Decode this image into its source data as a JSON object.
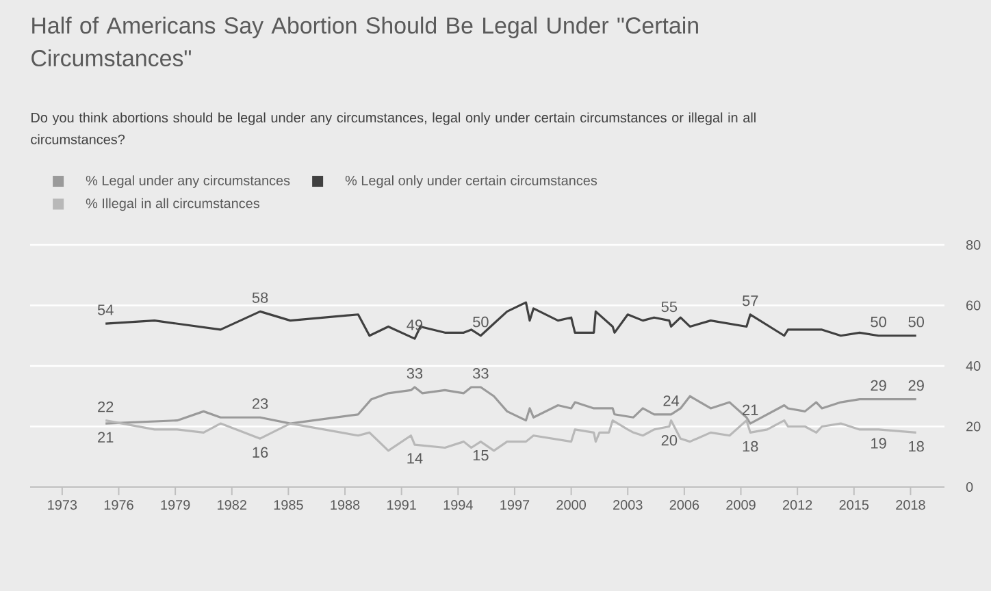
{
  "chart_data": {
    "type": "line",
    "title": "Half of Americans Say Abortion Should Be Legal Under \"Certain Circumstances\"",
    "subtitle": "Do you think abortions should be legal under any circumstances, legal only under certain circumstances or illegal in all circumstances?",
    "series": [
      {
        "name": "% Legal under any circumstances",
        "color": "#9a9a9a",
        "x": [
          1975.3,
          1979.1,
          1980.5,
          1981.4,
          1983.5,
          1985.1,
          1988.7,
          1989.4,
          1990.3,
          1991.5,
          1991.7,
          1992.1,
          1993.3,
          1994.3,
          1994.7,
          1995.2,
          1995.9,
          1996.6,
          1997.6,
          1997.8,
          1998.0,
          1999.3,
          2000.0,
          2000.2,
          2001.2,
          2002.2,
          2002.3,
          2003.3,
          2003.8,
          2004.4,
          2005.3,
          2005.8,
          2006.3,
          2007.4,
          2008.4,
          2009.3,
          2009.5,
          2011.3,
          2011.5,
          2012.4,
          2013.0,
          2013.3,
          2014.3,
          2015.3,
          2016.3,
          2018.3
        ],
        "values": [
          21,
          22,
          25,
          23,
          23,
          21,
          24,
          29,
          31,
          32,
          33,
          31,
          32,
          31,
          33,
          33,
          30,
          25,
          22,
          26,
          23,
          27,
          26,
          28,
          26,
          26,
          24,
          23,
          26,
          24,
          24,
          26,
          30,
          26,
          28,
          23,
          21,
          27,
          26,
          25,
          28,
          26,
          28,
          29,
          29,
          29
        ]
      },
      {
        "name": "% Legal only under certain circumstances",
        "color": "#404040",
        "x": [
          1975.3,
          1977.9,
          1981.4,
          1983.5,
          1985.1,
          1988.7,
          1989.3,
          1990.3,
          1991.7,
          1992.0,
          1993.3,
          1994.3,
          1994.7,
          1995.2,
          1995.9,
          1996.6,
          1997.6,
          1997.8,
          1998.0,
          1999.3,
          2000.0,
          2000.2,
          2001.2,
          2001.3,
          2002.2,
          2002.3,
          2003.0,
          2003.8,
          2004.4,
          2005.2,
          2005.3,
          2005.8,
          2006.3,
          2007.4,
          2009.3,
          2009.5,
          2011.3,
          2011.5,
          2012.4,
          2013.3,
          2014.3,
          2015.3,
          2016.3,
          2018.3
        ],
        "values": [
          54,
          55,
          52,
          58,
          55,
          57,
          50,
          53,
          49,
          53,
          51,
          51,
          52,
          50,
          54,
          58,
          61,
          55,
          59,
          55,
          56,
          51,
          51,
          58,
          53,
          51,
          57,
          55,
          56,
          55,
          53,
          56,
          53,
          55,
          53,
          57,
          50,
          52,
          52,
          52,
          50,
          51,
          50,
          50
        ]
      },
      {
        "name": "% Illegal in all circumstances",
        "color": "#b8b8b8",
        "x": [
          1975.3,
          1977.9,
          1979.1,
          1980.5,
          1981.4,
          1983.5,
          1985.1,
          1988.7,
          1989.3,
          1990.3,
          1991.5,
          1991.7,
          1993.3,
          1994.3,
          1994.7,
          1995.2,
          1995.9,
          1996.6,
          1997.6,
          1998.0,
          2000.0,
          2000.2,
          2001.2,
          2001.3,
          2001.5,
          2002.0,
          2002.2,
          2003.0,
          2003.3,
          2003.8,
          2004.4,
          2005.2,
          2005.3,
          2005.8,
          2006.3,
          2007.4,
          2008.4,
          2009.3,
          2009.5,
          2010.4,
          2011.3,
          2011.5,
          2012.4,
          2013.0,
          2013.3,
          2014.3,
          2015.3,
          2016.3,
          2018.3
        ],
        "values": [
          22,
          19,
          19,
          18,
          21,
          16,
          21,
          17,
          18,
          12,
          17,
          14,
          13,
          15,
          13,
          15,
          12,
          15,
          15,
          17,
          15,
          19,
          18,
          15,
          18,
          18,
          22,
          19,
          18,
          17,
          19,
          20,
          22,
          16,
          15,
          18,
          17,
          22,
          18,
          19,
          22,
          20,
          20,
          18,
          20,
          21,
          19,
          19,
          18
        ]
      }
    ],
    "xlim": [
      1971.3,
      2019.8
    ],
    "xticks": [
      1973,
      1976,
      1979,
      1982,
      1985,
      1988,
      1991,
      1994,
      1997,
      2000,
      2003,
      2006,
      2009,
      2012,
      2015,
      2018
    ],
    "ylim": [
      0,
      80
    ],
    "yticks": [
      0,
      20,
      40,
      60,
      80
    ],
    "grid": "y",
    "legend": "top left",
    "annotations": [
      {
        "text": "54",
        "x": 1975.3,
        "y": 54
      },
      {
        "text": "58",
        "x": 1983.5,
        "y": 58
      },
      {
        "text": "49",
        "x": 1991.7,
        "y": 49
      },
      {
        "text": "50",
        "x": 1995.2,
        "y": 50
      },
      {
        "text": "55",
        "x": 2005.2,
        "y": 55
      },
      {
        "text": "57",
        "x": 2009.5,
        "y": 57
      },
      {
        "text": "50",
        "x": 2016.3,
        "y": 50
      },
      {
        "text": "50",
        "x": 2018.3,
        "y": 50
      },
      {
        "text": "21",
        "x": 1975.3,
        "y": 21
      },
      {
        "text": "23",
        "x": 1983.5,
        "y": 23
      },
      {
        "text": "33",
        "x": 1991.7,
        "y": 33
      },
      {
        "text": "33",
        "x": 1995.2,
        "y": 33
      },
      {
        "text": "24",
        "x": 2005.3,
        "y": 24
      },
      {
        "text": "21",
        "x": 2009.5,
        "y": 21
      },
      {
        "text": "29",
        "x": 2016.3,
        "y": 29
      },
      {
        "text": "29",
        "x": 2018.3,
        "y": 29
      },
      {
        "text": "22",
        "x": 1975.3,
        "y": 22
      },
      {
        "text": "16",
        "x": 1983.5,
        "y": 16
      },
      {
        "text": "14",
        "x": 1991.7,
        "y": 14
      },
      {
        "text": "15",
        "x": 1995.2,
        "y": 15
      },
      {
        "text": "20",
        "x": 2005.2,
        "y": 20
      },
      {
        "text": "18",
        "x": 2009.5,
        "y": 18
      },
      {
        "text": "19",
        "x": 2016.3,
        "y": 19
      },
      {
        "text": "18",
        "x": 2018.3,
        "y": 18
      }
    ]
  }
}
